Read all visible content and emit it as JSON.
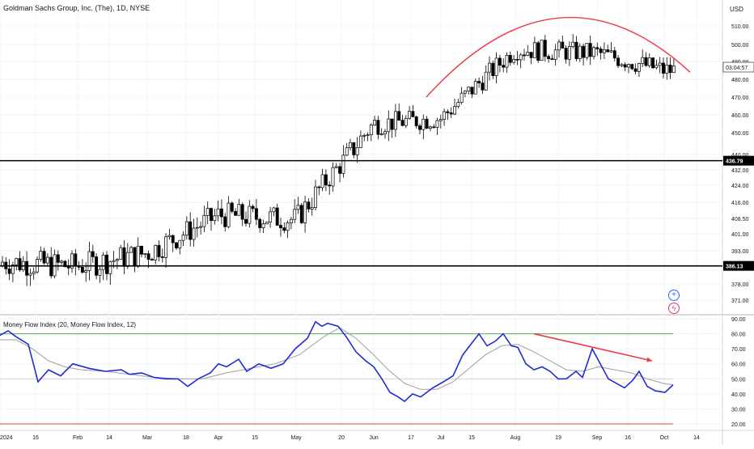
{
  "header": {
    "title": "Goldman Sachs Group, Inc. (The), 1D, NYSE",
    "currency": "USD",
    "countdown": "03:04:57"
  },
  "price_axis": {
    "ticks": [
      "510.00",
      "500.00",
      "490.00",
      "480.00",
      "470.00",
      "460.00",
      "450.00",
      "440.00",
      "432.00",
      "424.00",
      "416.00",
      "408.50",
      "401.00",
      "393.00",
      "386.00",
      "378.00",
      "371.00"
    ],
    "levels": {
      "upper": "436.79",
      "lower": "386.13"
    }
  },
  "mfi_axis": {
    "ticks": [
      "90.00",
      "80.00",
      "70.00",
      "60.00",
      "50.00",
      "40.00",
      "30.00",
      "20.00"
    ]
  },
  "time_axis": {
    "labels": [
      "2024",
      "16",
      "Feb",
      "14",
      "Mar",
      "18",
      "Apr",
      "15",
      "May",
      "20",
      "Jun",
      "17",
      "Jul",
      "15",
      "Aug",
      "19",
      "Sep",
      "16",
      "Oct",
      "14"
    ]
  },
  "tools": {
    "add_icon": "plus-circle-icon",
    "alert_icon": "lightning-icon"
  },
  "colors": {
    "arc": "#f23645",
    "mfi": "#1f2bd6",
    "mfi_ma": "#9e9e9e",
    "band_high": "#4caf50",
    "band_low": "#f23645",
    "level_line": "#000000"
  },
  "chart_data": [
    {
      "type": "candlestick",
      "title": "Goldman Sachs Group, Inc. (The), 1D, NYSE",
      "ylabel": "USD",
      "ylim": [
        368,
        520
      ],
      "horizontal_levels": [
        436.79,
        386.13
      ],
      "annotations": [
        "rounding top arc over Jul–Oct 2024"
      ],
      "monthly_closes": [
        {
          "x": "Jan",
          "close": 388
        },
        {
          "x": "Feb",
          "close": 386
        },
        {
          "x": "Mar",
          "close": 392
        },
        {
          "x": "Apr",
          "close": 410
        },
        {
          "x": "May",
          "close": 408
        },
        {
          "x": "Jun",
          "close": 455
        },
        {
          "x": "Jul",
          "close": 458
        },
        {
          "x": "Aug",
          "close": 497
        },
        {
          "x": "Sep",
          "close": 495
        },
        {
          "x": "Oct",
          "close": 485
        }
      ]
    },
    {
      "type": "line",
      "title": "Money Flow Index (20, Money Flow Index, 12)",
      "ylim": [
        18,
        92
      ],
      "bands": [
        80,
        20
      ],
      "series": [
        {
          "name": "Money Flow Index",
          "points": [
            [
              0,
              79
            ],
            [
              10,
              82
            ],
            [
              20,
              78
            ],
            [
              35,
              73
            ],
            [
              47,
              48
            ],
            [
              60,
              56
            ],
            [
              75,
              52
            ],
            [
              90,
              60
            ],
            [
              110,
              57
            ],
            [
              130,
              55
            ],
            [
              150,
              56
            ],
            [
              160,
              53
            ],
            [
              175,
              54
            ],
            [
              190,
              51
            ],
            [
              205,
              50
            ],
            [
              220,
              50
            ],
            [
              232,
              45
            ],
            [
              245,
              50
            ],
            [
              260,
              54
            ],
            [
              270,
              60
            ],
            [
              280,
              58
            ],
            [
              295,
              63
            ],
            [
              305,
              55
            ],
            [
              320,
              60
            ],
            [
              335,
              57
            ],
            [
              350,
              60
            ],
            [
              365,
              70
            ],
            [
              380,
              77
            ],
            [
              390,
              88
            ],
            [
              398,
              85
            ],
            [
              405,
              87
            ],
            [
              418,
              85
            ],
            [
              428,
              78
            ],
            [
              440,
              68
            ],
            [
              452,
              62
            ],
            [
              462,
              58
            ],
            [
              472,
              50
            ],
            [
              482,
              41
            ],
            [
              492,
              38
            ],
            [
              500,
              35
            ],
            [
              510,
              40
            ],
            [
              520,
              38
            ],
            [
              535,
              44
            ],
            [
              548,
              48
            ],
            [
              560,
              52
            ],
            [
              572,
              66
            ],
            [
              582,
              73
            ],
            [
              592,
              80
            ],
            [
              602,
              72
            ],
            [
              612,
              75
            ],
            [
              622,
              80
            ],
            [
              632,
              72
            ],
            [
              640,
              71
            ],
            [
              650,
              60
            ],
            [
              660,
              56
            ],
            [
              670,
              58
            ],
            [
              680,
              55
            ],
            [
              690,
              50
            ],
            [
              700,
              50
            ],
            [
              712,
              55
            ],
            [
              720,
              51
            ],
            [
              732,
              70
            ],
            [
              742,
              60
            ],
            [
              752,
              50
            ],
            [
              762,
              47
            ],
            [
              772,
              44
            ],
            [
              782,
              49
            ],
            [
              790,
              55
            ],
            [
              800,
              45
            ],
            [
              810,
              42
            ],
            [
              822,
              41
            ],
            [
              832,
              46
            ]
          ]
        },
        {
          "name": "Money Flow Index MA",
          "points": [
            [
              0,
              76
            ],
            [
              20,
              76
            ],
            [
              40,
              70
            ],
            [
              60,
              62
            ],
            [
              80,
              58
            ],
            [
              100,
              56
            ],
            [
              130,
              55
            ],
            [
              160,
              53
            ],
            [
              190,
              51
            ],
            [
              220,
              50
            ],
            [
              250,
              50
            ],
            [
              280,
              54
            ],
            [
              310,
              57
            ],
            [
              340,
              60
            ],
            [
              370,
              66
            ],
            [
              400,
              78
            ],
            [
              420,
              84
            ],
            [
              440,
              77
            ],
            [
              460,
              67
            ],
            [
              480,
              56
            ],
            [
              500,
              47
            ],
            [
              520,
              43
            ],
            [
              540,
              43
            ],
            [
              560,
              48
            ],
            [
              580,
              57
            ],
            [
              600,
              66
            ],
            [
              620,
              72
            ],
            [
              640,
              73
            ],
            [
              660,
              68
            ],
            [
              680,
              62
            ],
            [
              700,
              56
            ],
            [
              720,
              55
            ],
            [
              740,
              58
            ],
            [
              760,
              56
            ],
            [
              780,
              54
            ],
            [
              800,
              50
            ],
            [
              820,
              47
            ],
            [
              832,
              46
            ]
          ]
        }
      ]
    }
  ]
}
